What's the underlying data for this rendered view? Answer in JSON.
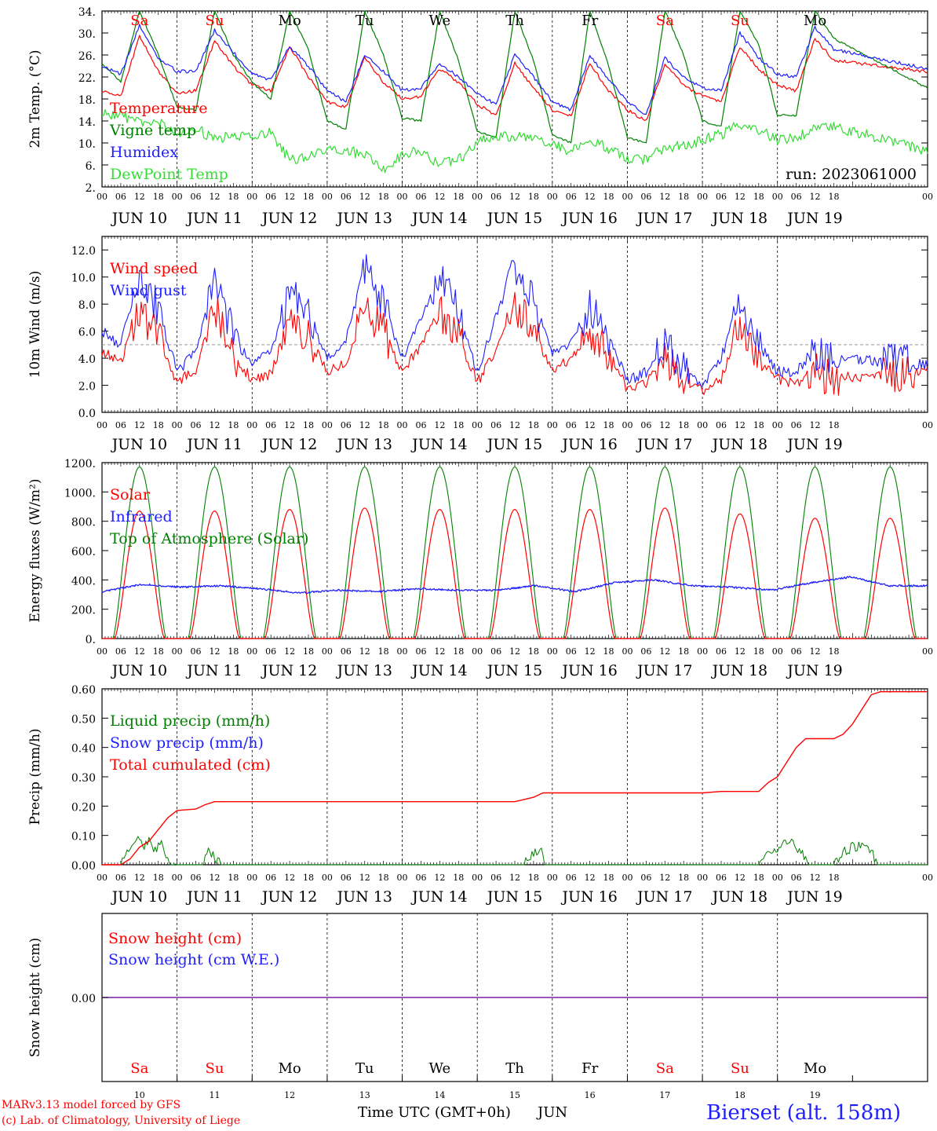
{
  "colors": {
    "red": "#ff0000",
    "green": "#008000",
    "lightgreen": "#33dd33",
    "blue": "#1e1eff",
    "purple": "#7a1fa0",
    "black": "#000000",
    "gray": "#999999"
  },
  "days": [
    "Sa",
    "Su",
    "Mo",
    "Tu",
    "We",
    "Th",
    "Fr",
    "Sa",
    "Su",
    "Mo"
  ],
  "weekend_idx": [
    0,
    1,
    7,
    8
  ],
  "dates": [
    "JUN 10",
    "JUN 11",
    "JUN 12",
    "JUN 13",
    "JUN 14",
    "JUN 15",
    "JUN 16",
    "JUN 17",
    "JUN 18",
    "JUN 19"
  ],
  "day_numbers": [
    "10",
    "11",
    "12",
    "13",
    "14",
    "15",
    "16",
    "17",
    "18",
    "19"
  ],
  "hour_labels": [
    "00",
    "06",
    "12",
    "18"
  ],
  "final_hour_label": "00",
  "run_label": "run: 2023061000",
  "xlabel": "Time UTC (GMT+0h)",
  "xlabel_month": "JUN",
  "footer": {
    "left1": "MARv3.13 model forced by GFS",
    "left2": "(c) Lab. of Climatology, University of Liege",
    "station": "Bierset (alt. 158m)"
  },
  "chart_data": [
    {
      "type": "line",
      "ylabel": "2m Temp. (°C)",
      "ylim": [
        2,
        34
      ],
      "yticks": [
        "2.",
        "6.",
        "10.",
        "14.",
        "18.",
        "22.",
        "26.",
        "30.",
        "34."
      ],
      "legend": [
        "Temperature",
        "Vigne temp",
        "Humidex",
        "DewPoint Temp"
      ],
      "x_hours": [
        0,
        6,
        12,
        18
      ],
      "series": [
        {
          "name": "Temperature",
          "color": "red",
          "daily": [
            [
              19.5,
              18.5,
              29.5,
              23.0
            ],
            [
              19.0,
              19.5,
              28.5,
              24.0
            ],
            [
              20.5,
              19.5,
              27.5,
              22.0
            ],
            [
              17.5,
              16.5,
              25.5,
              21.0
            ],
            [
              18.0,
              18.5,
              23.5,
              21.0
            ],
            [
              17.0,
              15.0,
              24.5,
              20.0
            ],
            [
              16.0,
              15.0,
              24.5,
              19.5
            ],
            [
              16.0,
              14.0,
              24.5,
              20.5
            ],
            [
              18.5,
              17.5,
              27.5,
              23.5
            ],
            [
              20.5,
              19.5,
              29.0,
              25.0
            ]
          ],
          "end": 23.0
        },
        {
          "name": "Vigne temp",
          "color": "green",
          "daily": [
            [
              24.5,
              21.0,
              34.0,
              26.0
            ],
            [
              16.5,
              16.0,
              34.0,
              26.0
            ],
            [
              21.0,
              18.0,
              34.0,
              27.0
            ],
            [
              14.0,
              12.5,
              34.0,
              26.0
            ],
            [
              14.5,
              14.0,
              34.0,
              25.0
            ],
            [
              12.0,
              11.0,
              34.0,
              25.0
            ],
            [
              11.5,
              10.0,
              34.0,
              24.0
            ],
            [
              11.0,
              10.0,
              34.0,
              26.0
            ],
            [
              14.0,
              13.0,
              34.0,
              28.0
            ],
            [
              15.0,
              15.0,
              34.0,
              29.0
            ]
          ],
          "end": 20.0
        },
        {
          "name": "Humidex",
          "color": "blue",
          "daily": [
            [
              24.0,
              22.5,
              31.5,
              25.5
            ],
            [
              23.0,
              23.0,
              30.5,
              26.5
            ],
            [
              22.5,
              21.5,
              27.5,
              24.0
            ],
            [
              19.5,
              17.5,
              26.0,
              23.0
            ],
            [
              19.5,
              20.0,
              24.5,
              22.0
            ],
            [
              19.0,
              17.0,
              26.0,
              22.0
            ],
            [
              17.5,
              16.0,
              26.0,
              21.5
            ],
            [
              17.5,
              15.0,
              25.5,
              22.0
            ],
            [
              20.0,
              19.5,
              30.0,
              25.5
            ],
            [
              22.5,
              22.0,
              31.0,
              27.0
            ]
          ],
          "end": 23.5
        },
        {
          "name": "DewPoint Temp",
          "color": "lightgreen",
          "daily": [
            [
              15.5,
              15.0,
              14.0,
              14.0
            ],
            [
              11.0,
              12.5,
              11.0,
              11.0
            ],
            [
              11.5,
              12.0,
              7.0,
              7.5
            ],
            [
              9.0,
              8.5,
              8.0,
              5.0
            ],
            [
              8.0,
              8.5,
              6.0,
              7.0
            ],
            [
              10.0,
              11.5,
              11.0,
              11.0
            ],
            [
              10.0,
              8.5,
              10.5,
              9.0
            ],
            [
              7.0,
              7.0,
              9.0,
              9.5
            ],
            [
              10.5,
              11.5,
              13.5,
              12.5
            ],
            [
              10.5,
              11.0,
              12.5,
              13.0
            ]
          ],
          "end": 8.5
        }
      ]
    },
    {
      "type": "line",
      "ylabel": "10m Wind (m/s)",
      "ylim": [
        0,
        13
      ],
      "yticks": [
        "0.0",
        "2.0",
        "4.0",
        "6.0",
        "8.0",
        "10.0",
        "12.0"
      ],
      "ref_line": 5.0,
      "legend": [
        "Wind speed",
        "Wind gust"
      ],
      "x_hours": [
        0,
        6,
        12,
        18
      ],
      "series": [
        {
          "name": "Wind speed",
          "color": "red",
          "daily": [
            [
              4.5,
              3.8,
              7.5,
              5.5
            ],
            [
              2.2,
              3.2,
              8.0,
              4.0
            ],
            [
              2.5,
              2.8,
              7.0,
              5.5
            ],
            [
              3.0,
              3.8,
              7.5,
              6.0
            ],
            [
              3.0,
              5.0,
              7.5,
              5.5
            ],
            [
              2.2,
              4.5,
              8.0,
              6.0
            ],
            [
              3.0,
              4.0,
              5.5,
              4.5
            ],
            [
              1.7,
              2.2,
              4.0,
              2.5
            ],
            [
              1.5,
              2.5,
              6.5,
              4.0
            ],
            [
              2.5,
              2.0,
              3.0,
              2.5
            ]
          ],
          "end": 3.0
        },
        {
          "name": "Wind gust",
          "color": "blue",
          "daily": [
            [
              6.0,
              5.0,
              10.5,
              7.5
            ],
            [
              3.0,
              4.5,
              10.5,
              5.5
            ],
            [
              3.5,
              4.5,
              9.0,
              7.5
            ],
            [
              4.0,
              5.5,
              10.5,
              8.0
            ],
            [
              4.0,
              7.0,
              10.0,
              7.5
            ],
            [
              3.0,
              7.0,
              11.0,
              8.0
            ],
            [
              4.5,
              5.0,
              8.0,
              5.5
            ],
            [
              2.3,
              3.0,
              5.0,
              3.5
            ],
            [
              2.0,
              4.0,
              8.5,
              5.0
            ],
            [
              3.0,
              3.0,
              4.5,
              4.0
            ]
          ],
          "end": 3.5
        }
      ]
    },
    {
      "type": "line",
      "ylabel": "Energy fluxes (W/m²)",
      "ylim": [
        0,
        1200
      ],
      "yticks": [
        "0.",
        "200.",
        "400.",
        "600.",
        "800.",
        "1000.",
        "1200."
      ],
      "legend": [
        "Solar",
        "Infrared",
        "Top of Atmosphere (Solar)"
      ],
      "solar_peaks": [
        870,
        870,
        880,
        890,
        880,
        880,
        880,
        890,
        850,
        820
      ],
      "toa_peak": 1170,
      "infrared": [
        320,
        370,
        350,
        360,
        340,
        310,
        330,
        320,
        340,
        330,
        330,
        360,
        320,
        380,
        400,
        360,
        350,
        330,
        380,
        420,
        360
      ],
      "x_hours": [
        0,
        6,
        12,
        18
      ]
    },
    {
      "type": "line",
      "ylabel": "Precip (mm/h)",
      "ylim": [
        0,
        0.6
      ],
      "yticks": [
        "0.00",
        "0.10",
        "0.20",
        "0.30",
        "0.40",
        "0.50",
        "0.60"
      ],
      "legend": [
        "Liquid precip (mm/h)",
        "Snow precip (mm/h)",
        "Total cumulated (cm)"
      ],
      "cumulated": [
        [
          0,
          0.0
        ],
        [
          6,
          0.0
        ],
        [
          9,
          0.02
        ],
        [
          12,
          0.06
        ],
        [
          15,
          0.08
        ],
        [
          18,
          0.12
        ],
        [
          21,
          0.16
        ],
        [
          24,
          0.185
        ],
        [
          30,
          0.19
        ],
        [
          33,
          0.205
        ],
        [
          36,
          0.215
        ],
        [
          132,
          0.215
        ],
        [
          138,
          0.23
        ],
        [
          141,
          0.245
        ],
        [
          192,
          0.245
        ],
        [
          198,
          0.25
        ],
        [
          210,
          0.25
        ],
        [
          213,
          0.28
        ],
        [
          216,
          0.3
        ],
        [
          219,
          0.35
        ],
        [
          222,
          0.4
        ],
        [
          225,
          0.43
        ],
        [
          234,
          0.43
        ],
        [
          237,
          0.445
        ],
        [
          240,
          0.48
        ],
        [
          243,
          0.53
        ],
        [
          246,
          0.58
        ],
        [
          249,
          0.59
        ],
        [
          264,
          0.59
        ]
      ],
      "liquid": [
        [
          6,
          0.0
        ],
        [
          9,
          0.05
        ],
        [
          11,
          0.09
        ],
        [
          13,
          0.06
        ],
        [
          15,
          0.08
        ],
        [
          17,
          0.05
        ],
        [
          19,
          0.08
        ],
        [
          21,
          0.02
        ],
        [
          24,
          0.0
        ],
        [
          32,
          0.0
        ],
        [
          34,
          0.05
        ],
        [
          36,
          0.02
        ],
        [
          38,
          0.0
        ],
        [
          135,
          0.0
        ],
        [
          138,
          0.04
        ],
        [
          140,
          0.06
        ],
        [
          141,
          0.02
        ],
        [
          142,
          0.0
        ],
        [
          210,
          0.0
        ],
        [
          213,
          0.05
        ],
        [
          216,
          0.04
        ],
        [
          219,
          0.08
        ],
        [
          222,
          0.06
        ],
        [
          225,
          0.02
        ],
        [
          226,
          0.0
        ],
        [
          234,
          0.0
        ],
        [
          237,
          0.04
        ],
        [
          240,
          0.06
        ],
        [
          243,
          0.07
        ],
        [
          246,
          0.05
        ],
        [
          248,
          0.0
        ]
      ],
      "x_hours": [
        0,
        6,
        12,
        18
      ]
    },
    {
      "type": "line",
      "ylabel": "Snow height (cm)",
      "ylim": [
        -1,
        1
      ],
      "yticks": [
        "0.00"
      ],
      "legend": [
        "Snow height (cm)",
        "Snow height (cm W.E.)"
      ],
      "value": 0.0
    }
  ]
}
